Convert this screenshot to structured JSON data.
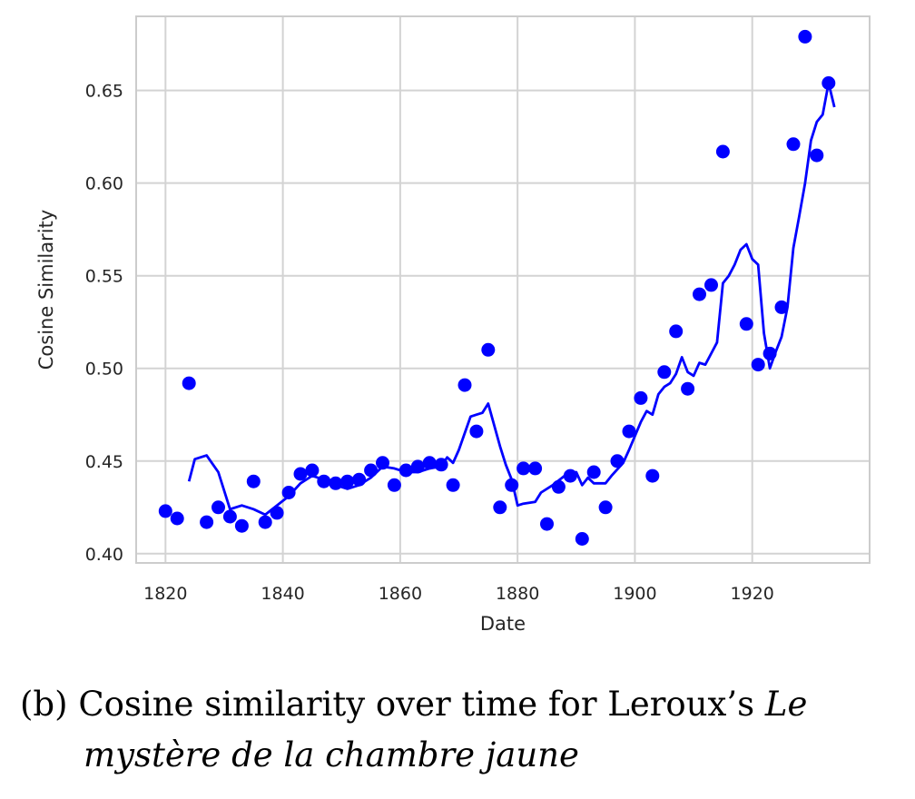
{
  "chart_data": {
    "type": "scatter",
    "title": "",
    "xlabel": "Date",
    "ylabel": "Cosine Similarity",
    "xlim": [
      1815,
      1940
    ],
    "ylim": [
      0.395,
      0.69
    ],
    "x_ticks": [
      1820,
      1840,
      1860,
      1880,
      1900,
      1920
    ],
    "x_tick_labels": [
      "1820",
      "1840",
      "1860",
      "1880",
      "1900",
      "1920"
    ],
    "y_ticks": [
      0.4,
      0.45,
      0.5,
      0.55,
      0.6,
      0.65
    ],
    "y_tick_labels": [
      "0.40",
      "0.45",
      "0.50",
      "0.55",
      "0.60",
      "0.65"
    ],
    "grid": true,
    "color": "#0000ff",
    "points": [
      [
        1820,
        0.423
      ],
      [
        1822,
        0.419
      ],
      [
        1824,
        0.492
      ],
      [
        1827,
        0.417
      ],
      [
        1829,
        0.425
      ],
      [
        1831,
        0.42
      ],
      [
        1833,
        0.415
      ],
      [
        1835,
        0.439
      ],
      [
        1837,
        0.417
      ],
      [
        1839,
        0.422
      ],
      [
        1841,
        0.433
      ],
      [
        1843,
        0.443
      ],
      [
        1845,
        0.445
      ],
      [
        1847,
        0.439
      ],
      [
        1849,
        0.438
      ],
      [
        1851,
        0.439
      ],
      [
        1853,
        0.44
      ],
      [
        1855,
        0.445
      ],
      [
        1857,
        0.449
      ],
      [
        1859,
        0.437
      ],
      [
        1861,
        0.445
      ],
      [
        1863,
        0.447
      ],
      [
        1865,
        0.449
      ],
      [
        1867,
        0.448
      ],
      [
        1869,
        0.437
      ],
      [
        1871,
        0.491
      ],
      [
        1873,
        0.466
      ],
      [
        1875,
        0.51
      ],
      [
        1877,
        0.425
      ],
      [
        1879,
        0.437
      ],
      [
        1881,
        0.446
      ],
      [
        1883,
        0.446
      ],
      [
        1885,
        0.416
      ],
      [
        1887,
        0.436
      ],
      [
        1889,
        0.442
      ],
      [
        1891,
        0.408
      ],
      [
        1893,
        0.444
      ],
      [
        1895,
        0.425
      ],
      [
        1897,
        0.45
      ],
      [
        1899,
        0.466
      ],
      [
        1901,
        0.484
      ],
      [
        1903,
        0.442
      ],
      [
        1905,
        0.498
      ],
      [
        1907,
        0.52
      ],
      [
        1909,
        0.489
      ],
      [
        1911,
        0.54
      ],
      [
        1913,
        0.545
      ],
      [
        1915,
        0.617
      ],
      [
        1919,
        0.524
      ],
      [
        1921,
        0.502
      ],
      [
        1923,
        0.508
      ],
      [
        1925,
        0.533
      ],
      [
        1927,
        0.621
      ],
      [
        1929,
        0.679
      ],
      [
        1931,
        0.615
      ],
      [
        1933,
        0.654
      ]
    ],
    "trend_line": [
      [
        1824,
        0.439
      ],
      [
        1825,
        0.451
      ],
      [
        1827,
        0.453
      ],
      [
        1829,
        0.444
      ],
      [
        1831,
        0.424
      ],
      [
        1833,
        0.426
      ],
      [
        1835,
        0.424
      ],
      [
        1837,
        0.421
      ],
      [
        1839,
        0.426
      ],
      [
        1841,
        0.431
      ],
      [
        1843,
        0.438
      ],
      [
        1845,
        0.442
      ],
      [
        1847,
        0.44
      ],
      [
        1849,
        0.437
      ],
      [
        1851,
        0.435
      ],
      [
        1853,
        0.437
      ],
      [
        1855,
        0.441
      ],
      [
        1857,
        0.447
      ],
      [
        1859,
        0.446
      ],
      [
        1861,
        0.444
      ],
      [
        1863,
        0.444
      ],
      [
        1865,
        0.446
      ],
      [
        1867,
        0.447
      ],
      [
        1868,
        0.452
      ],
      [
        1869,
        0.449
      ],
      [
        1870,
        0.456
      ],
      [
        1872,
        0.474
      ],
      [
        1873,
        0.475
      ],
      [
        1874,
        0.476
      ],
      [
        1875,
        0.481
      ],
      [
        1877,
        0.458
      ],
      [
        1878,
        0.448
      ],
      [
        1879,
        0.44
      ],
      [
        1880,
        0.426
      ],
      [
        1881,
        0.427
      ],
      [
        1883,
        0.428
      ],
      [
        1884,
        0.433
      ],
      [
        1886,
        0.437
      ],
      [
        1888,
        0.442
      ],
      [
        1890,
        0.444
      ],
      [
        1891,
        0.437
      ],
      [
        1892,
        0.441
      ],
      [
        1893,
        0.438
      ],
      [
        1895,
        0.438
      ],
      [
        1896,
        0.442
      ],
      [
        1898,
        0.449
      ],
      [
        1899,
        0.456
      ],
      [
        1901,
        0.471
      ],
      [
        1902,
        0.477
      ],
      [
        1903,
        0.475
      ],
      [
        1904,
        0.486
      ],
      [
        1905,
        0.49
      ],
      [
        1906,
        0.492
      ],
      [
        1907,
        0.497
      ],
      [
        1908,
        0.506
      ],
      [
        1909,
        0.498
      ],
      [
        1910,
        0.496
      ],
      [
        1911,
        0.503
      ],
      [
        1912,
        0.502
      ],
      [
        1914,
        0.514
      ],
      [
        1915,
        0.546
      ],
      [
        1916,
        0.55
      ],
      [
        1917,
        0.556
      ],
      [
        1918,
        0.564
      ],
      [
        1919,
        0.567
      ],
      [
        1920,
        0.559
      ],
      [
        1921,
        0.556
      ],
      [
        1922,
        0.519
      ],
      [
        1923,
        0.5
      ],
      [
        1924,
        0.509
      ],
      [
        1925,
        0.517
      ],
      [
        1926,
        0.533
      ],
      [
        1927,
        0.565
      ],
      [
        1928,
        0.582
      ],
      [
        1929,
        0.6
      ],
      [
        1930,
        0.623
      ],
      [
        1931,
        0.633
      ],
      [
        1932,
        0.637
      ],
      [
        1933,
        0.654
      ],
      [
        1934,
        0.641
      ]
    ]
  },
  "caption": {
    "prefix": "(b) Cosine similarity over time for Leroux’s ",
    "italic_1": "Le",
    "italic_2": "mystère de la chambre jaune"
  }
}
